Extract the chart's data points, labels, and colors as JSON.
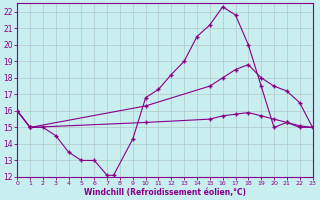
{
  "xlabel": "Windchill (Refroidissement éolien,°C)",
  "background_color": "#c8eef0",
  "grid_color": "#b0c8c8",
  "line_color": "#880088",
  "xlim": [
    0,
    23
  ],
  "ylim": [
    12,
    22.5
  ],
  "yticks": [
    12,
    13,
    14,
    15,
    16,
    17,
    18,
    19,
    20,
    21,
    22
  ],
  "xticks": [
    0,
    1,
    2,
    3,
    4,
    5,
    6,
    7,
    8,
    9,
    10,
    11,
    12,
    13,
    14,
    15,
    16,
    17,
    18,
    19,
    20,
    21,
    22,
    23
  ],
  "curve1_x": [
    0,
    1,
    2,
    3,
    4,
    5,
    6,
    7,
    7.5,
    9,
    10,
    11,
    12,
    13,
    14,
    15,
    16,
    17,
    18,
    19,
    20,
    21,
    22,
    23
  ],
  "curve1_y": [
    16.0,
    15.0,
    15.0,
    14.5,
    13.5,
    13.0,
    13.0,
    12.1,
    12.1,
    14.3,
    16.8,
    17.3,
    18.2,
    19.0,
    20.5,
    21.2,
    22.3,
    21.8,
    20.0,
    17.5,
    15.0,
    15.3,
    15.0,
    15.0
  ],
  "curve2_x": [
    0,
    1,
    10,
    15,
    16,
    17,
    18,
    19,
    20,
    21,
    22,
    23
  ],
  "curve2_y": [
    16.0,
    15.0,
    16.3,
    17.5,
    18.0,
    18.5,
    18.8,
    18.0,
    17.5,
    17.2,
    16.5,
    15.0
  ],
  "curve3_x": [
    0,
    1,
    10,
    15,
    16,
    17,
    18,
    19,
    20,
    21,
    22,
    23
  ],
  "curve3_y": [
    16.0,
    15.0,
    15.3,
    15.5,
    15.7,
    15.8,
    15.9,
    15.7,
    15.5,
    15.3,
    15.1,
    15.0
  ]
}
